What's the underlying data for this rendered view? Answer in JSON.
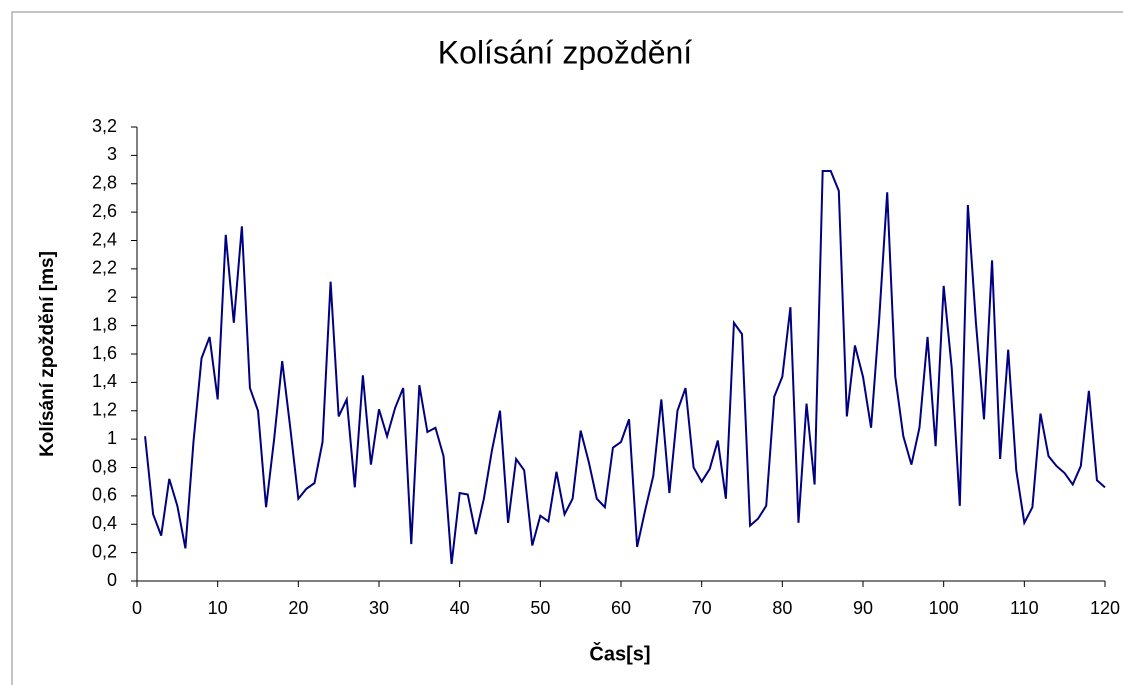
{
  "chart_data": {
    "type": "line",
    "title": "Kolísání zpoždění",
    "x_label": "Čas[s]",
    "y_label": "Kolísání zpoždění [ms]",
    "x": [
      1,
      2,
      3,
      4,
      5,
      6,
      7,
      8,
      9,
      10,
      11,
      12,
      13,
      14,
      15,
      16,
      17,
      18,
      19,
      20,
      21,
      22,
      23,
      24,
      25,
      26,
      27,
      28,
      29,
      30,
      31,
      32,
      33,
      34,
      35,
      36,
      37,
      38,
      39,
      40,
      41,
      42,
      43,
      44,
      45,
      46,
      47,
      48,
      49,
      50,
      51,
      52,
      53,
      54,
      55,
      56,
      57,
      58,
      59,
      60,
      61,
      62,
      63,
      64,
      65,
      66,
      67,
      68,
      69,
      70,
      71,
      72,
      73,
      74,
      75,
      76,
      77,
      78,
      79,
      80,
      81,
      82,
      83,
      84,
      85,
      86,
      87,
      88,
      89,
      90,
      91,
      92,
      93,
      94,
      95,
      96,
      97,
      98,
      99,
      100,
      101,
      102,
      103,
      104,
      105,
      106,
      107,
      108,
      109,
      110,
      111,
      112,
      113,
      114,
      115,
      116,
      117,
      118,
      119,
      120
    ],
    "series": [
      {
        "name": "Kolísání zpoždění",
        "color": "#000080",
        "values": [
          1.02,
          0.47,
          0.32,
          0.72,
          0.53,
          0.23,
          0.98,
          1.57,
          1.72,
          1.28,
          2.44,
          1.82,
          2.5,
          1.36,
          1.2,
          0.52,
          1.0,
          1.55,
          1.08,
          0.58,
          0.65,
          0.69,
          0.98,
          2.11,
          1.16,
          1.28,
          0.66,
          1.45,
          0.82,
          1.21,
          1.02,
          1.22,
          1.36,
          0.26,
          1.38,
          1.05,
          1.08,
          0.88,
          0.12,
          0.62,
          0.61,
          0.33,
          0.58,
          0.92,
          1.2,
          0.41,
          0.86,
          0.78,
          0.25,
          0.46,
          0.42,
          0.77,
          0.47,
          0.58,
          1.06,
          0.84,
          0.58,
          0.52,
          0.94,
          0.98,
          1.14,
          0.24,
          0.5,
          0.74,
          1.28,
          0.62,
          1.2,
          1.36,
          0.8,
          0.7,
          0.79,
          0.99,
          0.58,
          1.82,
          1.74,
          0.39,
          0.44,
          0.53,
          1.3,
          1.44,
          1.93,
          0.41,
          1.25,
          0.68,
          2.89,
          2.89,
          2.75,
          1.16,
          1.66,
          1.44,
          1.08,
          1.84,
          2.74,
          1.44,
          1.02,
          0.82,
          1.08,
          1.72,
          0.95,
          2.08,
          1.5,
          0.53,
          2.65,
          1.82,
          1.14,
          2.26,
          0.86,
          1.63,
          0.78,
          0.41,
          0.52,
          1.18,
          0.88,
          0.81,
          0.76,
          0.68,
          0.81,
          1.34,
          0.71,
          0.66
        ]
      }
    ],
    "xlim": [
      0,
      120
    ],
    "xticks": [
      0,
      10,
      20,
      30,
      40,
      50,
      60,
      70,
      80,
      90,
      100,
      110,
      120
    ],
    "ylim": [
      0,
      3.2
    ],
    "yticks": [
      0,
      {
        "value": 0.2,
        "label": "0,2"
      },
      {
        "value": 0.4,
        "label": "0,4"
      },
      {
        "value": 0.6,
        "label": "0,6"
      },
      {
        "value": 0.8,
        "label": "0,8"
      },
      1,
      {
        "value": 1.2,
        "label": "1,2"
      },
      {
        "value": 1.4,
        "label": "1,4"
      },
      {
        "value": 1.6,
        "label": "1,6"
      },
      {
        "value": 1.8,
        "label": "1,8"
      },
      2,
      {
        "value": 2.2,
        "label": "2,2"
      },
      {
        "value": 2.4,
        "label": "2,4"
      },
      {
        "value": 2.6,
        "label": "2,6"
      },
      {
        "value": 2.8,
        "label": "2,8"
      },
      3,
      {
        "value": 3.2,
        "label": "3,2"
      }
    ],
    "grid": false
  }
}
